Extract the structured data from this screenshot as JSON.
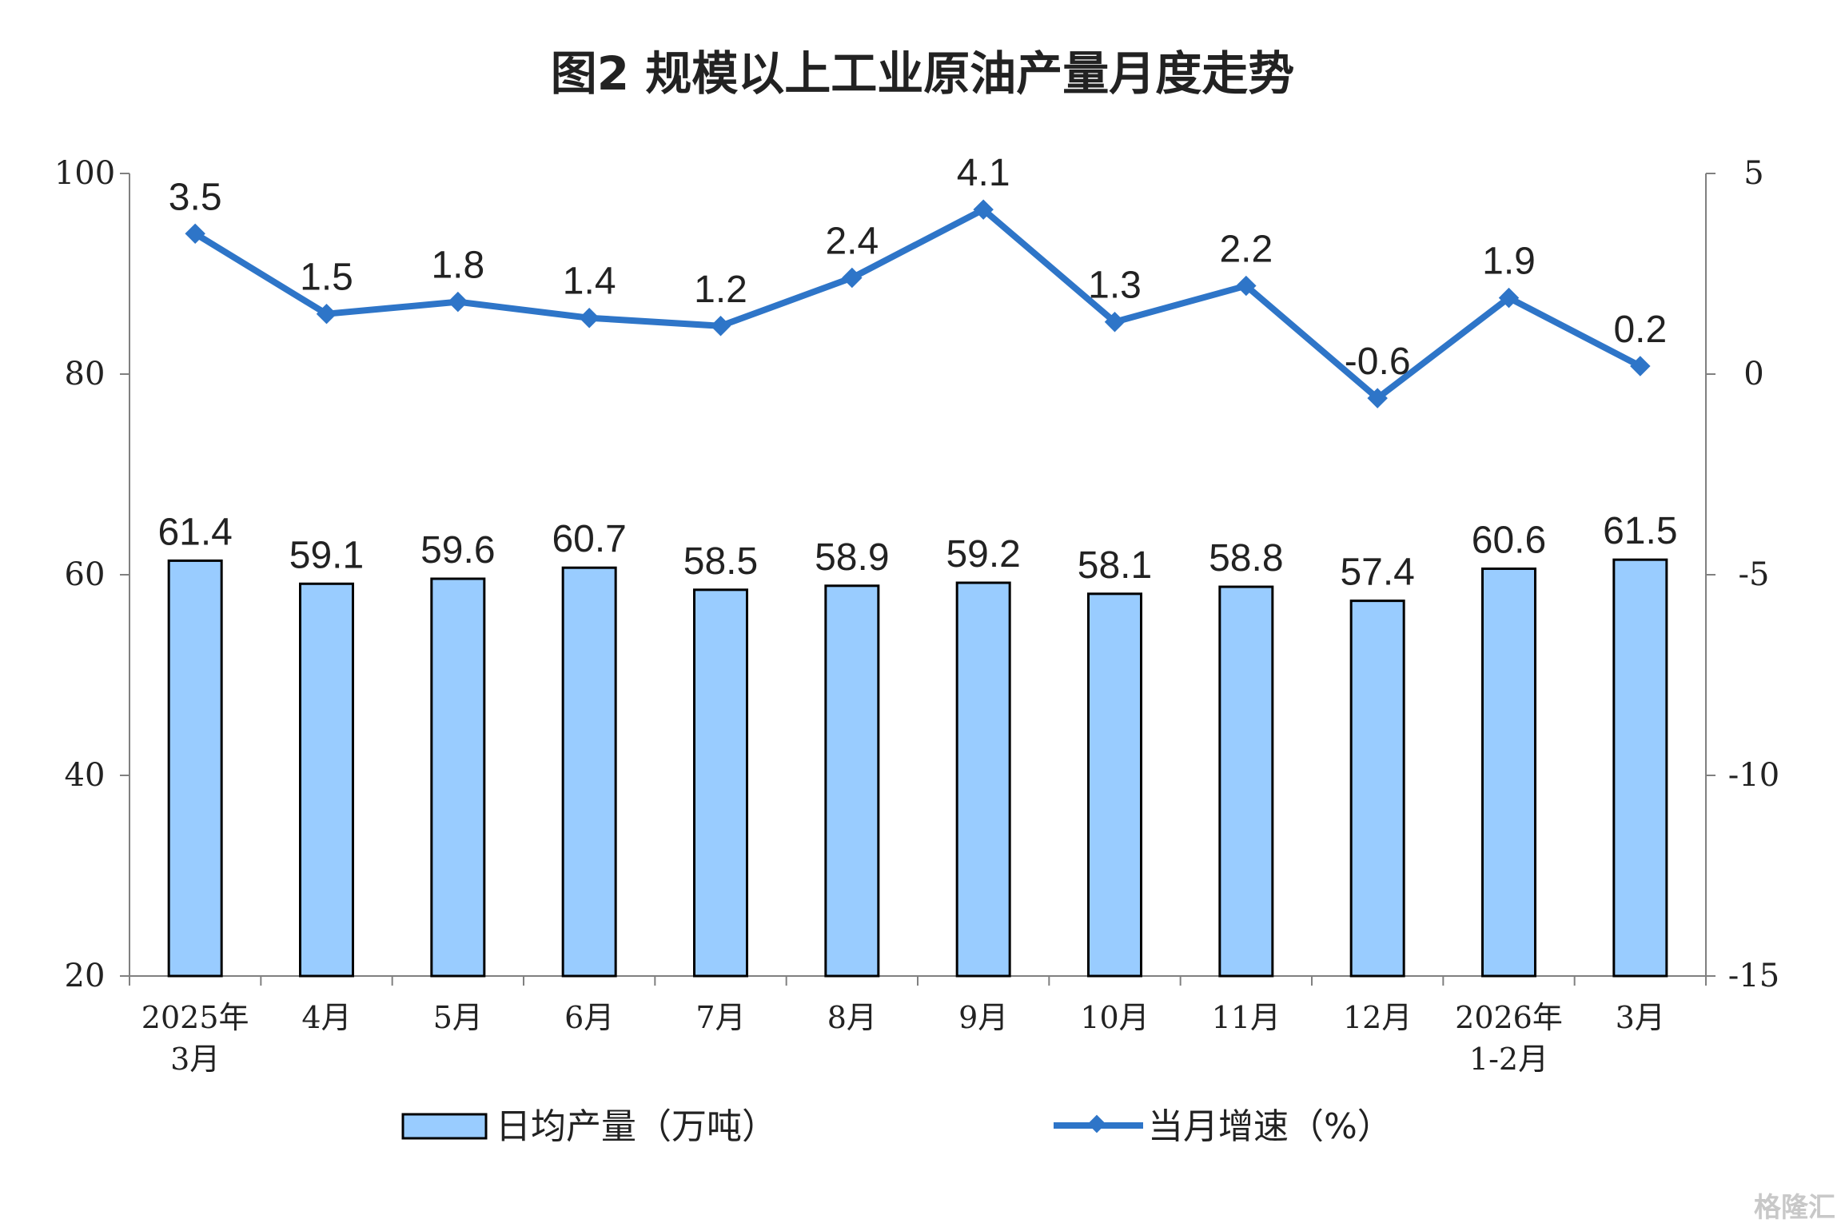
{
  "chart_data": {
    "type": "bar+line",
    "title": "图2  规模以上工业原油产量月度走势",
    "categories": [
      [
        "2025年",
        "3月"
      ],
      [
        "4月"
      ],
      [
        "5月"
      ],
      [
        "6月"
      ],
      [
        "7月"
      ],
      [
        "8月"
      ],
      [
        "9月"
      ],
      [
        "10月"
      ],
      [
        "11月"
      ],
      [
        "12月"
      ],
      [
        "2026年",
        "1-2月"
      ],
      [
        "3月"
      ]
    ],
    "series": [
      {
        "name": "日均产量（万吨）",
        "type": "bar",
        "axis": "left",
        "values": [
          61.4,
          59.1,
          59.6,
          60.7,
          58.5,
          58.9,
          59.2,
          58.1,
          58.8,
          57.4,
          60.6,
          61.5
        ],
        "labels": [
          "61.4",
          "59.1",
          "59.6",
          "60.7",
          "58.5",
          "58.9",
          "59.2",
          "58.1",
          "58.8",
          "57.4",
          "60.6",
          "61.5"
        ]
      },
      {
        "name": "当月增速（%）",
        "type": "line",
        "axis": "right",
        "values": [
          3.5,
          1.5,
          1.8,
          1.4,
          1.2,
          2.4,
          4.1,
          1.3,
          2.2,
          -0.6,
          1.9,
          0.2
        ],
        "labels": [
          "3.5",
          "1.5",
          "1.8",
          "1.4",
          "1.2",
          "2.4",
          "4.1",
          "1.3",
          "2.2",
          "-0.6",
          "1.9",
          "0.2"
        ]
      }
    ],
    "left_axis": {
      "ylim": [
        20,
        100
      ],
      "ticks": [
        "100",
        "80",
        "60",
        "40",
        "20"
      ]
    },
    "right_axis": {
      "ylim": [
        -15,
        5
      ],
      "ticks": [
        "5",
        "0",
        "-5",
        "-10",
        "-15"
      ]
    },
    "grid": false,
    "legend_position": "bottom",
    "colors": {
      "bar_fill": "#99ccff",
      "bar_stroke": "#000000",
      "line": "#2e75c8",
      "axis": "#808080"
    }
  },
  "watermark": "格隆汇"
}
